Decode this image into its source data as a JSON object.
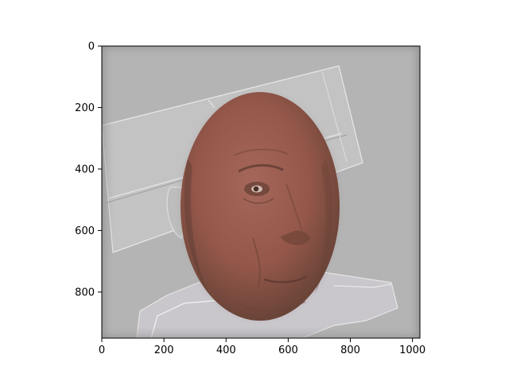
{
  "figure": {
    "background": "#ffffff"
  },
  "chart_data": {
    "type": "image",
    "title": "",
    "xlabel": "",
    "ylabel": "",
    "xlim": [
      0,
      1024
    ],
    "ylim": [
      950,
      0
    ],
    "x_ticks": [
      0,
      200,
      400,
      600,
      800,
      1000
    ],
    "y_ticks": [
      0,
      200,
      400,
      600,
      800
    ],
    "image": {
      "width": 1024,
      "height": 950,
      "colors": {
        "background": "#b4b4b4",
        "edge_highlight": "#e2e2e2",
        "face_tone": "#9b5a4a",
        "face_shadow": "#5a3a30",
        "clothing": "#d6d3d8"
      }
    }
  }
}
